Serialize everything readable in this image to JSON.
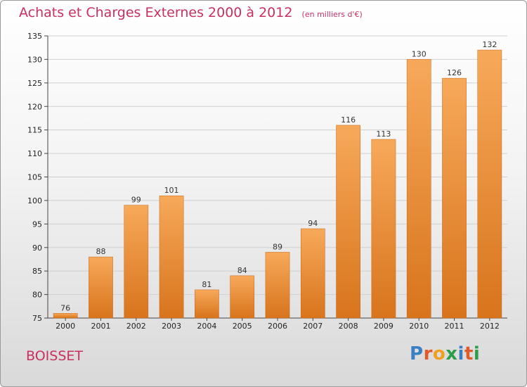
{
  "header": {
    "title": "Achats et Charges Externes 2000 à 2012",
    "unit": "(en milliers d'€)"
  },
  "footer": {
    "commune": "BOISSET",
    "brand": {
      "text": "Proxiti",
      "letters": [
        {
          "char": "P",
          "color": "#3a7fc4"
        },
        {
          "char": "r",
          "color": "#e05a2a"
        },
        {
          "char": "o",
          "color": "#f0a020"
        },
        {
          "char": "x",
          "color": "#2e9e4a"
        },
        {
          "char": "i",
          "color": "#3a7fc4"
        },
        {
          "char": "t",
          "color": "#e05a2a"
        },
        {
          "char": "i",
          "color": "#2e9e4a"
        }
      ]
    }
  },
  "colors": {
    "bar_light": "#f7a95a",
    "bar_dark": "#d8741c",
    "title": "#c93060",
    "grid": "#d0d0d0"
  },
  "chart_data": {
    "type": "bar",
    "title": "Achats et Charges Externes 2000 à 2012",
    "subtitle": "(en milliers d'€)",
    "xlabel": "",
    "ylabel": "",
    "categories": [
      "2000",
      "2001",
      "2002",
      "2003",
      "2004",
      "2005",
      "2006",
      "2007",
      "2008",
      "2009",
      "2010",
      "2011",
      "2012"
    ],
    "values": [
      76,
      88,
      99,
      101,
      81,
      84,
      89,
      94,
      116,
      113,
      130,
      126,
      132
    ],
    "ylim": [
      75,
      135
    ],
    "yticks": [
      75,
      80,
      85,
      90,
      95,
      100,
      105,
      110,
      115,
      120,
      125,
      130,
      135
    ],
    "grid": true,
    "legend": "none"
  }
}
